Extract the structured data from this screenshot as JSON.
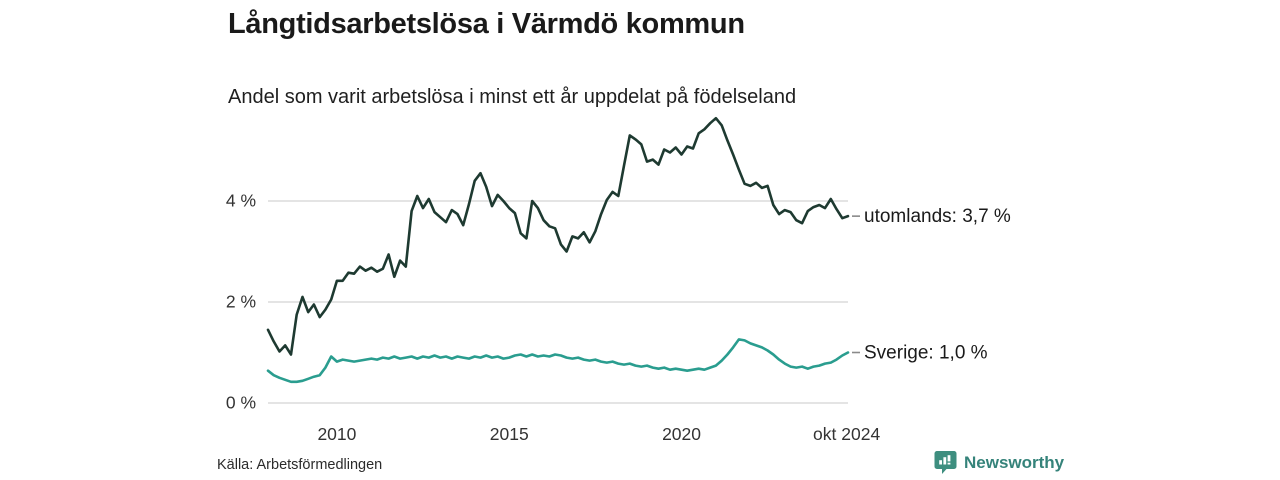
{
  "header": {
    "title": "Långtidsarbetslösa i Värmdö kommun",
    "subtitle": "Andel som varit arbetslösa i minst ett år uppdelat på födelseland"
  },
  "footer": {
    "source": "Källa: Arbetsförmedlingen"
  },
  "branding": {
    "name": "Newsworthy",
    "icon": "newsworthy-bar-chart-bubble-icon",
    "icon_color": "#3e8e7f",
    "text_color": "#35837a"
  },
  "chart_data": {
    "type": "line",
    "title": "Långtidsarbetslösa i Värmdö kommun",
    "xlabel": "",
    "ylabel": "",
    "unit": "%",
    "grid": "horizontal",
    "gridline_color": "#dcdcdc",
    "axis_text_color": "#333333",
    "legend_position": "end-of-line-labels",
    "x_start": 2008.0,
    "x_end": 2024.83,
    "ylim_ticks": [
      0,
      4
    ],
    "y_ticks": [
      {
        "label": "0 %",
        "value": 0
      },
      {
        "label": "2 %",
        "value": 2
      },
      {
        "label": "4 %",
        "value": 4
      }
    ],
    "x_ticks": [
      {
        "label": "2010",
        "year": 2010
      },
      {
        "label": "2015",
        "year": 2015
      },
      {
        "label": "2020",
        "year": 2020
      },
      {
        "label": "okt 2024",
        "year": 2024.79
      }
    ],
    "series": [
      {
        "name": "utomlands",
        "end_label": "utomlands: 3,7 %",
        "last_value": 3.7,
        "color": "#1e3a31",
        "values": [
          1.45,
          1.22,
          1.02,
          1.14,
          0.96,
          1.75,
          2.1,
          1.8,
          1.95,
          1.7,
          1.85,
          2.05,
          2.42,
          2.42,
          2.58,
          2.56,
          2.7,
          2.62,
          2.68,
          2.6,
          2.66,
          2.94,
          2.5,
          2.82,
          2.7,
          3.8,
          4.1,
          3.86,
          4.04,
          3.78,
          3.68,
          3.58,
          3.82,
          3.74,
          3.52,
          3.94,
          4.4,
          4.55,
          4.28,
          3.9,
          4.12,
          4.0,
          3.86,
          3.76,
          3.36,
          3.26,
          4.0,
          3.86,
          3.62,
          3.5,
          3.46,
          3.14,
          3.0,
          3.3,
          3.26,
          3.38,
          3.18,
          3.4,
          3.74,
          4.02,
          4.18,
          4.1,
          4.7,
          5.3,
          5.22,
          5.12,
          4.78,
          4.82,
          4.72,
          5.02,
          4.96,
          5.06,
          4.92,
          5.08,
          5.04,
          5.34,
          5.42,
          5.54,
          5.64,
          5.5,
          5.2,
          4.92,
          4.62,
          4.34,
          4.3,
          4.36,
          4.26,
          4.3,
          3.92,
          3.74,
          3.82,
          3.78,
          3.62,
          3.56,
          3.8,
          3.88,
          3.92,
          3.86,
          4.04,
          3.84,
          3.66,
          3.7
        ]
      },
      {
        "name": "Sverige",
        "end_label": "Sverige: 1,0 %",
        "last_value": 1.0,
        "color": "#2a9d8f",
        "values": [
          0.64,
          0.55,
          0.5,
          0.46,
          0.42,
          0.42,
          0.44,
          0.48,
          0.52,
          0.55,
          0.7,
          0.92,
          0.82,
          0.86,
          0.84,
          0.82,
          0.84,
          0.86,
          0.88,
          0.86,
          0.9,
          0.88,
          0.92,
          0.88,
          0.9,
          0.92,
          0.88,
          0.92,
          0.9,
          0.94,
          0.9,
          0.92,
          0.88,
          0.92,
          0.9,
          0.88,
          0.92,
          0.9,
          0.94,
          0.9,
          0.92,
          0.88,
          0.9,
          0.94,
          0.96,
          0.92,
          0.96,
          0.92,
          0.94,
          0.92,
          0.96,
          0.94,
          0.9,
          0.88,
          0.9,
          0.86,
          0.84,
          0.86,
          0.82,
          0.8,
          0.82,
          0.78,
          0.76,
          0.78,
          0.74,
          0.72,
          0.74,
          0.7,
          0.68,
          0.7,
          0.66,
          0.68,
          0.66,
          0.64,
          0.66,
          0.68,
          0.66,
          0.7,
          0.74,
          0.84,
          0.96,
          1.1,
          1.26,
          1.24,
          1.18,
          1.14,
          1.1,
          1.04,
          0.96,
          0.86,
          0.78,
          0.72,
          0.7,
          0.72,
          0.68,
          0.72,
          0.74,
          0.78,
          0.8,
          0.86,
          0.94,
          1.0
        ]
      }
    ]
  }
}
